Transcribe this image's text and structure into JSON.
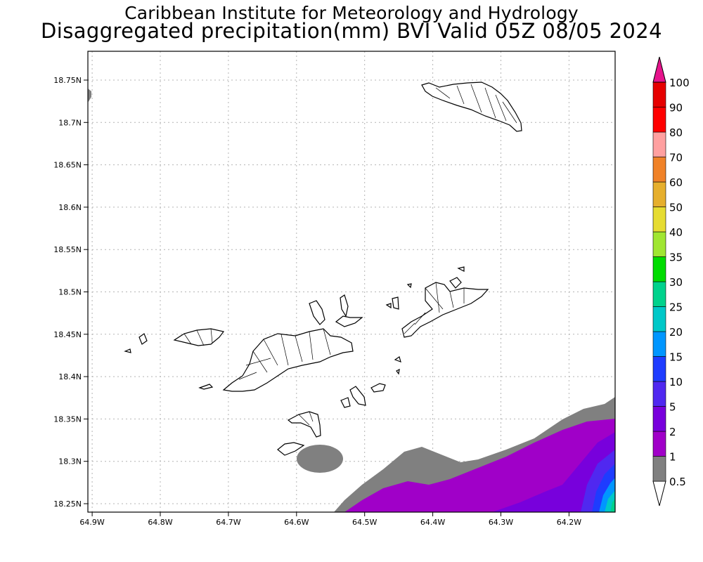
{
  "header": {
    "institution": "Caribbean Institute for Meteorology and Hydrology",
    "product": "Disaggregated precipitation(mm) BVI Valid 05Z 08/05 2024"
  },
  "axes": {
    "lat_labels": [
      "18.75N",
      "18.7N",
      "18.65N",
      "18.6N",
      "18.55N",
      "18.5N",
      "18.45N",
      "18.4N",
      "18.35N",
      "18.3N",
      "18.25N"
    ],
    "lat_values": [
      18.75,
      18.7,
      18.65,
      18.6,
      18.55,
      18.5,
      18.45,
      18.4,
      18.35,
      18.3,
      18.25
    ],
    "lon_labels": [
      "64.9W",
      "64.8W",
      "64.7W",
      "64.6W",
      "64.5W",
      "64.4W",
      "64.3W",
      "64.2W"
    ],
    "lon_values": [
      -64.9,
      -64.8,
      -64.7,
      -64.6,
      -64.5,
      -64.4,
      -64.3,
      -64.2
    ]
  },
  "colorbar": {
    "levels": [
      "0.5",
      "1",
      "2",
      "5",
      "10",
      "15",
      "20",
      "25",
      "30",
      "35",
      "40",
      "50",
      "60",
      "70",
      "80",
      "90",
      "100"
    ],
    "colors": [
      "#ffffff",
      "#808080",
      "#a000c8",
      "#7800dc",
      "#5028f0",
      "#1e3cff",
      "#0096ff",
      "#00c8c8",
      "#00d28c",
      "#00dc00",
      "#a0e632",
      "#e6dc32",
      "#e6af2d",
      "#f08228",
      "#ffa0a0",
      "#ff0000",
      "#e60000",
      "#c80064",
      "#e6148c"
    ]
  },
  "map_data": {
    "region": "British Virgin Islands",
    "variable": "precipitation (mm)",
    "valid": "05Z 08/05 2024"
  }
}
